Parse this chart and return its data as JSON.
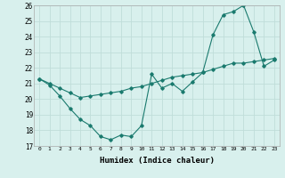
{
  "line1_x": [
    0,
    1,
    2,
    3,
    4,
    5,
    6,
    7,
    8,
    9,
    10,
    11,
    12,
    13,
    14,
    15,
    16,
    17,
    18,
    19,
    20,
    21,
    22,
    23
  ],
  "line1_y": [
    21.3,
    20.9,
    20.2,
    19.4,
    18.7,
    18.3,
    17.6,
    17.4,
    17.7,
    17.6,
    18.3,
    21.6,
    20.7,
    21.0,
    20.5,
    21.1,
    21.7,
    24.1,
    25.4,
    25.6,
    26.0,
    24.3,
    22.1,
    22.5
  ],
  "line2_x": [
    0,
    1,
    2,
    3,
    4,
    5,
    6,
    7,
    8,
    9,
    10,
    11,
    12,
    13,
    14,
    15,
    16,
    17,
    18,
    19,
    20,
    21,
    22,
    23
  ],
  "line2_y": [
    21.3,
    21.0,
    20.7,
    20.4,
    20.1,
    20.2,
    20.3,
    20.4,
    20.5,
    20.7,
    20.8,
    21.0,
    21.2,
    21.4,
    21.5,
    21.6,
    21.7,
    21.9,
    22.1,
    22.3,
    22.3,
    22.4,
    22.5,
    22.6
  ],
  "line_color": "#1a7a6e",
  "bg_color": "#d8f0ed",
  "grid_color": "#c0ddd9",
  "xlabel": "Humidex (Indice chaleur)",
  "ylim": [
    17,
    26
  ],
  "xlim": [
    -0.5,
    23.5
  ],
  "yticks": [
    17,
    18,
    19,
    20,
    21,
    22,
    23,
    24,
    25,
    26
  ],
  "xticks": [
    0,
    1,
    2,
    3,
    4,
    5,
    6,
    7,
    8,
    9,
    10,
    11,
    12,
    13,
    14,
    15,
    16,
    17,
    18,
    19,
    20,
    21,
    22,
    23
  ]
}
